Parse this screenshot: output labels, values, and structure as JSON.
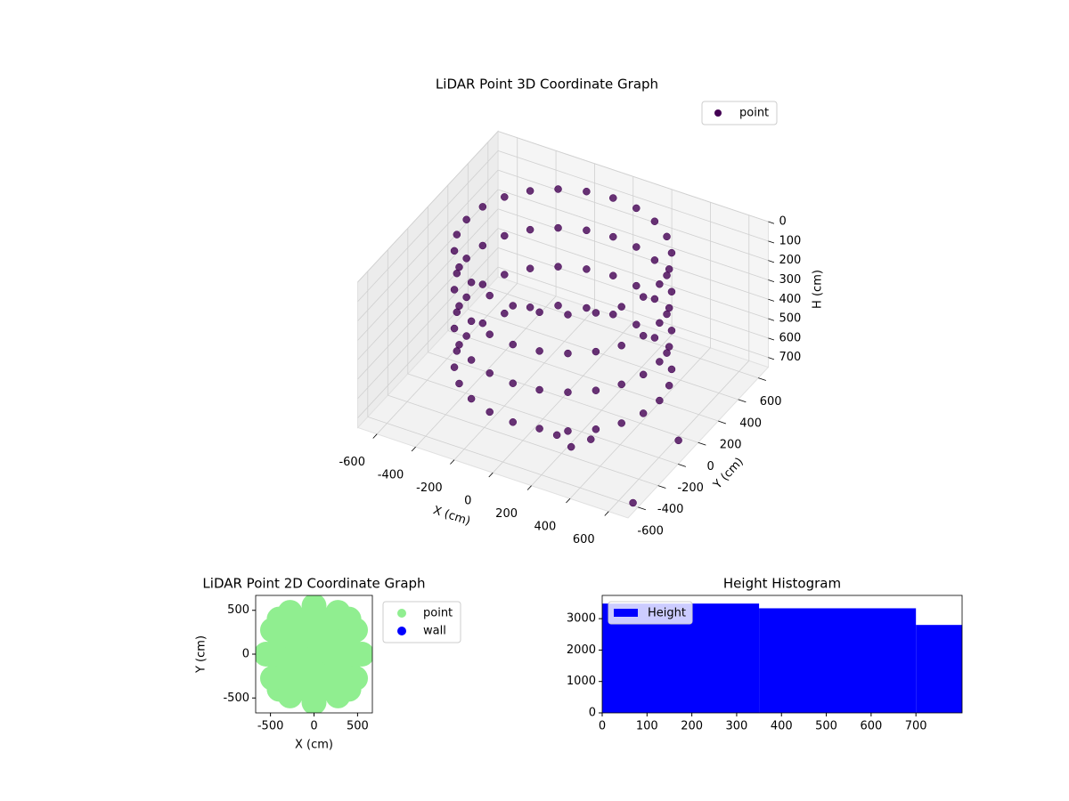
{
  "chart_data": [
    {
      "type": "scatter3d",
      "title": "LiDAR Point 3D Coordinate Graph",
      "x_label": "X (cm)",
      "y_label": "Y (cm)",
      "z_label": "H (cm)",
      "xlim": [
        -700,
        700
      ],
      "ylim": [
        -700,
        700
      ],
      "zlim": [
        0,
        750
      ],
      "z_inverted": true,
      "xticks": [
        -600,
        -400,
        -200,
        0,
        200,
        400,
        600
      ],
      "yticks": [
        -600,
        -400,
        -200,
        0,
        200,
        400,
        600
      ],
      "zticks": [
        0,
        100,
        200,
        300,
        400,
        500,
        600,
        700
      ],
      "legend": "upper right",
      "grid": true,
      "series": [
        {
          "name": "point",
          "color": "#440154",
          "x": [
            500,
            483,
            433,
            354,
            250,
            129,
            0,
            -129,
            -250,
            -354,
            -433,
            -483,
            -500,
            -483,
            -433,
            -354,
            -250,
            -129,
            0,
            129,
            250,
            354,
            433,
            483,
            500,
            483,
            433,
            354,
            250,
            129,
            0,
            -129,
            -250,
            -354,
            -433,
            -483,
            -500,
            -483,
            -433,
            -354,
            -250,
            -129,
            0,
            129,
            250,
            354,
            433,
            483,
            500,
            483,
            433,
            354,
            250,
            129,
            0,
            -129,
            -250,
            -354,
            -433,
            -483,
            -500,
            -483,
            -433,
            -354,
            -250,
            -129,
            0,
            129,
            250,
            354,
            433,
            483,
            500,
            483,
            433,
            354,
            250,
            129,
            0,
            -129,
            -250,
            -354,
            -433,
            -483,
            -500,
            -483,
            -433,
            -354,
            -250,
            -129,
            0,
            129,
            250,
            354,
            433,
            483,
            150,
            250,
            300,
            650,
            700
          ],
          "y": [
            0,
            129,
            250,
            354,
            433,
            483,
            500,
            483,
            433,
            354,
            250,
            129,
            0,
            -129,
            -250,
            -354,
            -433,
            -483,
            -500,
            -483,
            -433,
            -354,
            -250,
            -129,
            0,
            129,
            250,
            354,
            433,
            483,
            500,
            483,
            433,
            354,
            250,
            129,
            0,
            -129,
            -250,
            -354,
            -433,
            -483,
            -500,
            -483,
            -433,
            -354,
            -250,
            -129,
            0,
            129,
            250,
            354,
            433,
            483,
            500,
            483,
            433,
            354,
            250,
            129,
            0,
            -129,
            -250,
            -354,
            -433,
            -483,
            -500,
            -483,
            -433,
            -354,
            -250,
            -129,
            0,
            129,
            250,
            354,
            433,
            483,
            500,
            483,
            433,
            354,
            250,
            129,
            0,
            -129,
            -250,
            -354,
            -433,
            -483,
            -500,
            -483,
            -433,
            -354,
            -250,
            -129,
            -350,
            -400,
            -300,
            -100,
            -650
          ],
          "z": [
            0,
            0,
            0,
            0,
            0,
            0,
            0,
            0,
            0,
            0,
            0,
            0,
            0,
            0,
            0,
            0,
            0,
            0,
            0,
            0,
            0,
            0,
            0,
            0,
            200,
            200,
            200,
            200,
            200,
            200,
            200,
            200,
            200,
            200,
            200,
            200,
            200,
            200,
            200,
            200,
            200,
            200,
            200,
            200,
            200,
            200,
            200,
            200,
            400,
            400,
            400,
            400,
            400,
            400,
            400,
            400,
            400,
            400,
            400,
            400,
            400,
            400,
            400,
            400,
            400,
            400,
            400,
            400,
            400,
            400,
            400,
            400,
            600,
            600,
            600,
            600,
            600,
            600,
            600,
            600,
            600,
            600,
            600,
            600,
            600,
            600,
            600,
            600,
            600,
            600,
            600,
            600,
            600,
            600,
            600,
            600,
            700,
            700,
            700,
            700,
            700
          ]
        }
      ]
    },
    {
      "type": "scatter",
      "title": "LiDAR Point 2D Coordinate Graph",
      "x_label": "X (cm)",
      "y_label": "Y (cm)",
      "xlim": [
        -670,
        670
      ],
      "ylim": [
        -670,
        670
      ],
      "xticks": [
        -500,
        0,
        500
      ],
      "yticks": [
        -500,
        0,
        500
      ],
      "legend": "outside right",
      "series": [
        {
          "name": "point",
          "color": "#90ee90",
          "x": [
            -400,
            -200,
            0,
            200,
            400,
            -400,
            -200,
            0,
            200,
            400,
            -400,
            -200,
            0,
            200,
            400,
            -400,
            -200,
            0,
            200,
            400,
            -400,
            -200,
            0,
            200,
            400,
            550,
            476,
            275,
            0,
            -275,
            -476,
            -550,
            -476,
            -275,
            0,
            275,
            476
          ],
          "y": [
            -400,
            -400,
            -400,
            -400,
            -400,
            -200,
            -200,
            -200,
            -200,
            -200,
            0,
            0,
            0,
            0,
            0,
            200,
            200,
            200,
            200,
            200,
            400,
            400,
            400,
            400,
            400,
            0,
            275,
            476,
            550,
            476,
            275,
            0,
            -275,
            -476,
            -550,
            -476,
            -275
          ]
        },
        {
          "name": "wall",
          "color": "#0000ff",
          "x": [],
          "y": []
        }
      ]
    },
    {
      "type": "histogram",
      "title": "Height Histogram",
      "bins": [
        0,
        350,
        700,
        803
      ],
      "counts": [
        3480,
        3330,
        2800
      ],
      "color": "#0000ff",
      "name": "Height",
      "xlim": [
        0,
        803
      ],
      "ylim": [
        0,
        3740
      ],
      "xticks": [
        0,
        100,
        200,
        300,
        400,
        500,
        600,
        700
      ],
      "yticks": [
        0,
        1000,
        2000,
        3000
      ],
      "legend": "upper left"
    }
  ]
}
